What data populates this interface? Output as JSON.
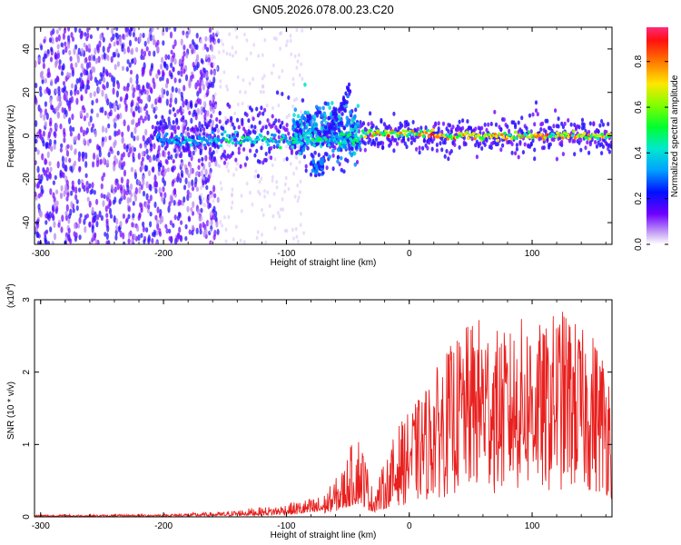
{
  "figure": {
    "title": "GN05.2026.078.00.23.C20"
  },
  "chart_data": [
    {
      "type": "heatmap",
      "title": "GN05.2026.078.00.23.C20",
      "xlabel": "Height of straight line (km)",
      "ylabel": "Frequency (Hz)",
      "xlim": [
        -305,
        165
      ],
      "ylim": [
        -50,
        50
      ],
      "xticks": [
        -300,
        -200,
        -100,
        0,
        100
      ],
      "xtick_labels": [
        "-300",
        "-200",
        "-100",
        "0",
        "100"
      ],
      "yticks": [
        -40,
        -20,
        0,
        20,
        40
      ],
      "ytick_labels": [
        "-40",
        "-20",
        "0",
        "20",
        "40"
      ],
      "description_features": {
        "noise_region_km": [
          -305,
          -155
        ],
        "signal_start_km": -210,
        "turbulent_region_km": [
          -95,
          -40
        ],
        "burst_near_km": -50,
        "burst_freq_hz": 22,
        "secondary_blob_km": -75,
        "secondary_blob_freq_hz": -15,
        "steady_region_km": [
          -40,
          165
        ],
        "steady_freq_hz": 0
      },
      "colorbar": {
        "label": "Normalized spectral amplitude",
        "range": [
          0.0,
          0.95
        ],
        "ticks": [
          0.0,
          0.2,
          0.4,
          0.6,
          0.8
        ],
        "tick_labels": [
          "0.0",
          "0.2",
          "0.4",
          "0.6",
          "0.8"
        ]
      }
    },
    {
      "type": "line",
      "xlabel": "Height of straight line (km)",
      "ylabel": "SNR (10 * v/v)",
      "y_scale_label": "(x10",
      "y_scale_exp": "4",
      "y_scale_close": ")",
      "xlim": [
        -305,
        165
      ],
      "ylim": [
        0,
        3
      ],
      "xticks": [
        -300,
        -200,
        -100,
        0,
        100
      ],
      "xtick_labels": [
        "-300",
        "-200",
        "-100",
        "0",
        "100"
      ],
      "yticks": [
        0,
        1,
        2,
        3
      ],
      "ytick_labels": [
        "0",
        "1",
        "2",
        "3"
      ],
      "color": "#e8201e",
      "envelope": {
        "x": [
          -305,
          -250,
          -200,
          -150,
          -130,
          -110,
          -90,
          -70,
          -55,
          -45,
          -40,
          -30,
          -20,
          -10,
          0,
          10,
          20,
          30,
          40,
          50,
          60,
          70,
          80,
          90,
          100,
          110,
          120,
          130,
          140,
          150,
          160,
          165
        ],
        "y": [
          0.03,
          0.03,
          0.04,
          0.07,
          0.12,
          0.15,
          0.22,
          0.3,
          0.65,
          1.1,
          1.2,
          0.4,
          0.75,
          1.25,
          1.45,
          1.7,
          2.0,
          2.3,
          2.5,
          2.7,
          2.8,
          2.6,
          2.55,
          2.75,
          2.8,
          2.6,
          2.9,
          2.85,
          2.6,
          2.55,
          2.25,
          2.0
        ]
      }
    }
  ]
}
